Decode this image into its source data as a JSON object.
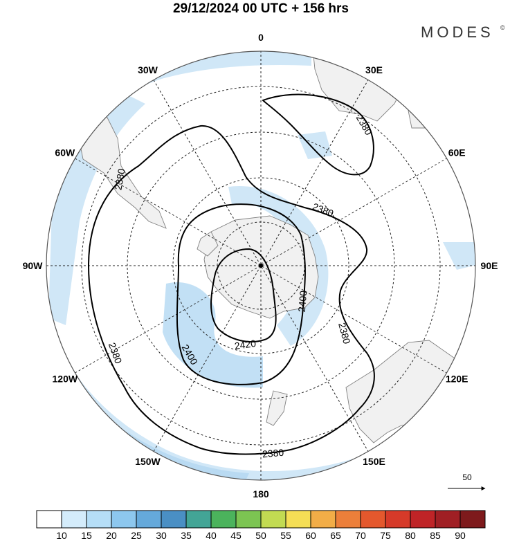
{
  "title": "29/12/2024  00 UTC  + 156 hrs",
  "brand": {
    "name": "MODES",
    "mark": "©"
  },
  "longitude_labels": [
    {
      "lon": 0,
      "label": "0"
    },
    {
      "lon": 30,
      "label": "30E"
    },
    {
      "lon": 60,
      "label": "60E"
    },
    {
      "lon": 90,
      "label": "90E"
    },
    {
      "lon": 120,
      "label": "120E"
    },
    {
      "lon": 150,
      "label": "150E"
    },
    {
      "lon": 180,
      "label": "180"
    },
    {
      "lon": -150,
      "label": "150W"
    },
    {
      "lon": -120,
      "label": "120W"
    },
    {
      "lon": -90,
      "label": "90W"
    },
    {
      "lon": -60,
      "label": "60W"
    },
    {
      "lon": -30,
      "label": "30W"
    }
  ],
  "contours": [
    {
      "value": "2380",
      "labels": [
        "2380",
        "2380",
        "2380",
        "2380",
        "2380",
        "2380"
      ]
    },
    {
      "value": "2400",
      "labels": [
        "2400",
        "2400"
      ]
    },
    {
      "value": "2420",
      "labels": [
        "2420"
      ]
    }
  ],
  "wind_reference": {
    "label": "50"
  },
  "colorbar": {
    "colors": [
      "#ffffff",
      "#d4ecfb",
      "#b5def7",
      "#8dc7ee",
      "#65a9db",
      "#4a8fc4",
      "#43a596",
      "#4bb35c",
      "#7cc452",
      "#c2db52",
      "#f5de55",
      "#f2ad47",
      "#ec7f3a",
      "#e4582d",
      "#d63a29",
      "#bf2427",
      "#a01f24",
      "#7e1a1c"
    ],
    "tick_labels": [
      "10",
      "15",
      "20",
      "25",
      "30",
      "35",
      "40",
      "45",
      "50",
      "55",
      "60",
      "65",
      "70",
      "75",
      "80",
      "85",
      "90"
    ]
  },
  "map_colors": {
    "land": "#f1f1f1",
    "wind": "#d0e7f7",
    "wind_strong": "#b9daf2",
    "contour": "#000000"
  }
}
